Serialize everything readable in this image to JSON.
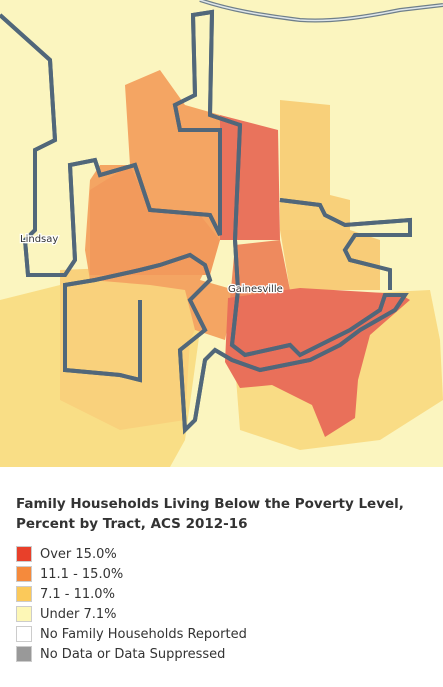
{
  "map": {
    "labels": [
      "Lindsay",
      "Gainesville"
    ]
  },
  "legend": {
    "title": "Family Households Living Below the Poverty Level, Percent by Tract, ACS 2012-16",
    "items": [
      {
        "label": "Over 15.0%",
        "color": "#e8402a"
      },
      {
        "label": "11.1 - 15.0%",
        "color": "#f58a3c"
      },
      {
        "label": "7.1 - 11.0%",
        "color": "#fbc95a"
      },
      {
        "label": "Under 7.1%",
        "color": "#fdf7b6"
      },
      {
        "label": "No Family Households Reported",
        "color": "#ffffff"
      },
      {
        "label": "No Data or Data Suppressed",
        "color": "#999999"
      }
    ]
  }
}
